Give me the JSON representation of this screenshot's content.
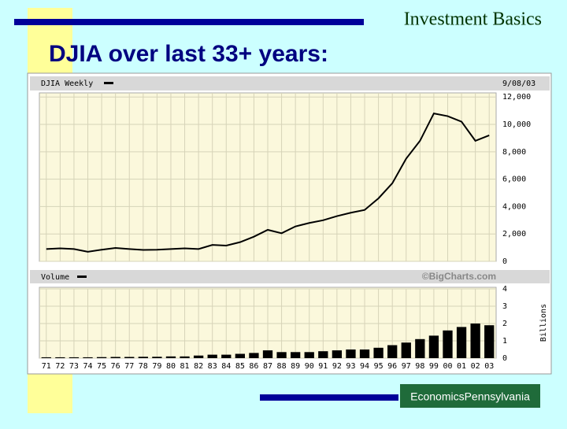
{
  "slide": {
    "header": "Investment Basics",
    "title": "DJIA over last 33+ years:",
    "logo": "EconomicsPennsylvania"
  },
  "chart_data": [
    {
      "type": "line",
      "title": "DJIA Weekly",
      "date": "9/08/03",
      "color": "#000000",
      "grid": true,
      "values": [
        900,
        950,
        900,
        700,
        850,
        980,
        900,
        830,
        850,
        900,
        950,
        900,
        1200,
        1150,
        1400,
        1800,
        2300,
        2050,
        2550,
        2800,
        3000,
        3300,
        3550,
        3750,
        4600,
        5700,
        7500,
        8800,
        10800,
        10600,
        10200,
        8800,
        9200
      ],
      "ylim": [
        0,
        12300
      ],
      "yticks": [
        0,
        {
          "value": 2000,
          "label": "2,000"
        },
        {
          "value": 4000,
          "label": "4,000"
        },
        {
          "value": 6000,
          "label": "6,000"
        },
        {
          "value": 8000,
          "label": "8,000"
        },
        {
          "value": 10000,
          "label": "10,000"
        },
        {
          "value": 12000,
          "label": "12,000"
        }
      ]
    },
    {
      "type": "bar",
      "title": "Volume",
      "source": "©BigCharts.com",
      "y_label": "Billions",
      "color": "#000000",
      "grid": true,
      "categories": [
        "71",
        "72",
        "73",
        "74",
        "75",
        "76",
        "77",
        "78",
        "79",
        "80",
        "81",
        "82",
        "83",
        "84",
        "85",
        "86",
        "87",
        "88",
        "89",
        "90",
        "91",
        "92",
        "93",
        "94",
        "95",
        "96",
        "97",
        "98",
        "99",
        "00",
        "01",
        "02",
        "03"
      ],
      "values": [
        0.05,
        0.05,
        0.05,
        0.05,
        0.06,
        0.07,
        0.07,
        0.08,
        0.08,
        0.1,
        0.1,
        0.15,
        0.2,
        0.2,
        0.25,
        0.3,
        0.45,
        0.35,
        0.35,
        0.35,
        0.4,
        0.45,
        0.5,
        0.5,
        0.6,
        0.75,
        0.9,
        1.1,
        1.3,
        1.6,
        1.8,
        2.0,
        1.9
      ],
      "ylim": [
        0,
        4
      ],
      "yticks": [
        0,
        1,
        2,
        3,
        4
      ]
    }
  ]
}
